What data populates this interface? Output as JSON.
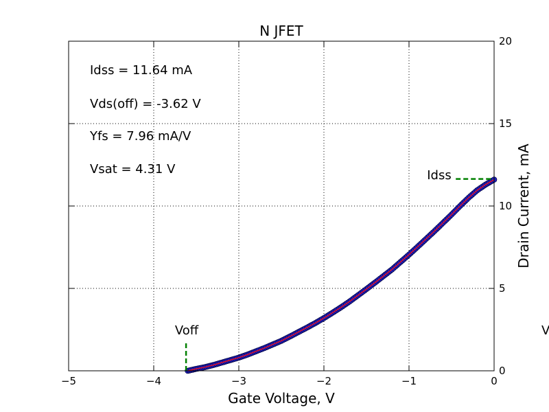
{
  "chart_data": {
    "type": "scatter",
    "title": "N JFET",
    "xlabel": "Gate Voltage, V",
    "ylabel": "Drain Current, mA",
    "xlim": [
      -5,
      0
    ],
    "ylim": [
      0,
      20
    ],
    "x_ticks": [
      -5,
      -4,
      -3,
      -2,
      -1,
      0
    ],
    "x_tick_labels": [
      "−5",
      "−4",
      "−3",
      "−2",
      "−1",
      "0"
    ],
    "y_ticks": [
      0,
      5,
      10,
      15,
      20
    ],
    "y_tick_labels": [
      "0",
      "5",
      "10",
      "15",
      "20"
    ],
    "y_axis_side": "right",
    "grid": true,
    "series": [
      {
        "color": "#1f1fbf",
        "marker": "circle",
        "x": [
          -3.6,
          -3.5,
          -3.4,
          -3.3,
          -3.2,
          -3.1,
          -3.0,
          -2.9,
          -2.8,
          -2.7,
          -2.6,
          -2.5,
          -2.4,
          -2.3,
          -2.2,
          -2.1,
          -2.0,
          -1.9,
          -1.8,
          -1.7,
          -1.6,
          -1.5,
          -1.4,
          -1.3,
          -1.2,
          -1.1,
          -1.0,
          -0.9,
          -0.8,
          -0.7,
          -0.6,
          -0.5,
          -0.4,
          -0.3,
          -0.2,
          -0.1,
          0.0
        ],
        "y": [
          0.0,
          0.12,
          0.22,
          0.35,
          0.5,
          0.65,
          0.8,
          0.98,
          1.18,
          1.38,
          1.6,
          1.82,
          2.08,
          2.35,
          2.62,
          2.9,
          3.2,
          3.52,
          3.85,
          4.2,
          4.58,
          4.96,
          5.35,
          5.75,
          6.15,
          6.6,
          7.05,
          7.52,
          8.0,
          8.48,
          8.98,
          9.48,
          10.0,
          10.5,
          10.95,
          11.3,
          11.6
        ]
      },
      {
        "color": "#e0102a",
        "marker": "line",
        "x": [
          -3.6,
          -3.5,
          -3.4,
          -3.3,
          -3.2,
          -3.1,
          -3.0,
          -2.9,
          -2.8,
          -2.7,
          -2.6,
          -2.5,
          -2.4,
          -2.3,
          -2.2,
          -2.1,
          -2.0,
          -1.9,
          -1.8,
          -1.7,
          -1.6,
          -1.5,
          -1.4,
          -1.3,
          -1.2,
          -1.1,
          -1.0,
          -0.9,
          -0.8,
          -0.7,
          -0.6,
          -0.5,
          -0.4,
          -0.3,
          -0.2,
          -0.1,
          0.0
        ],
        "y": [
          0.0,
          0.12,
          0.22,
          0.35,
          0.5,
          0.65,
          0.8,
          0.98,
          1.18,
          1.38,
          1.6,
          1.82,
          2.08,
          2.35,
          2.62,
          2.9,
          3.2,
          3.52,
          3.85,
          4.2,
          4.58,
          4.96,
          5.35,
          5.75,
          6.15,
          6.6,
          7.05,
          7.52,
          8.0,
          8.48,
          8.98,
          9.48,
          10.0,
          10.5,
          10.95,
          11.3,
          11.6
        ]
      }
    ],
    "params": [
      "Idss = 11.64 mA",
      "Vds(off) = -3.62 V",
      "Yfs = 7.96 mA/V",
      "Vsat = 4.31 V"
    ],
    "markers": {
      "voff": {
        "label": "Voff",
        "x": -3.62,
        "y_top": 1.75,
        "color": "#008000"
      },
      "idss": {
        "label": "Idss",
        "y": 11.64,
        "x_start": -0.45,
        "color": "#008000"
      }
    },
    "clipped_label": "V"
  }
}
